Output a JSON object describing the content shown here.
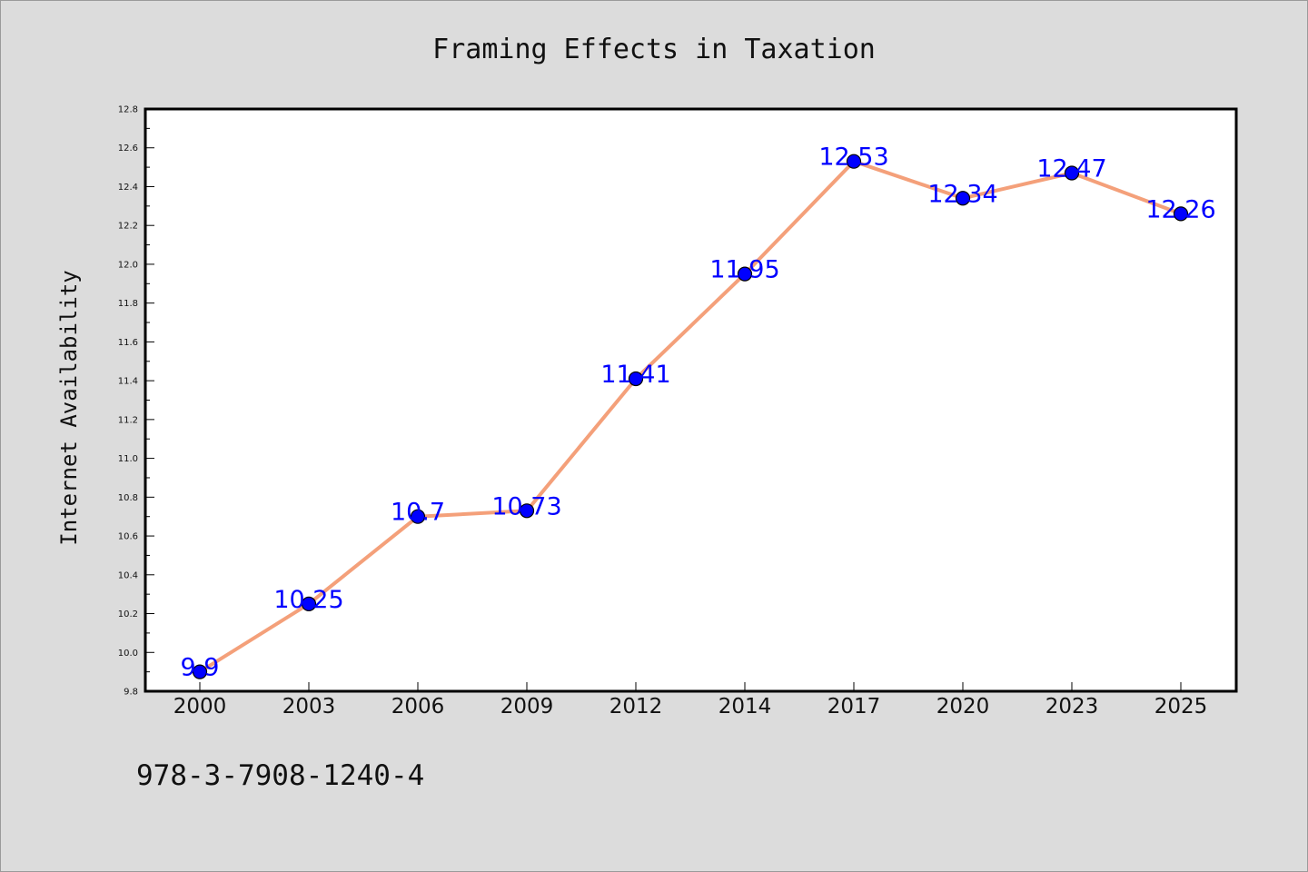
{
  "colors": {
    "page_background": "#dcdcdc",
    "plot_background": "#ffffff",
    "line": "#f4a07a",
    "marker": "#0000ff",
    "data_label": "#0000ff",
    "axis": "#000000"
  },
  "footnote": "978-3-7908-1240-4",
  "chart_data": {
    "type": "line",
    "title": "Framing Effects in Taxation",
    "xlabel": "",
    "ylabel": "Internet Availability",
    "categories": [
      "2000",
      "2003",
      "2006",
      "2009",
      "2012",
      "2014",
      "2017",
      "2020",
      "2023",
      "2025"
    ],
    "series": [
      {
        "values": [
          9.9,
          10.25,
          10.7,
          10.73,
          11.41,
          11.95,
          12.53,
          12.34,
          12.47,
          12.26
        ],
        "labels": [
          "9.9",
          "10.25",
          "10.7",
          "10.73",
          "11.41",
          "11.95",
          "12.53",
          "12.34",
          "12.47",
          "12.26"
        ]
      }
    ],
    "ylim": [
      9.8,
      12.8
    ],
    "yticks": [
      "9.8",
      "10.0",
      "10.2",
      "10.4",
      "10.6",
      "10.8",
      "11.0",
      "11.2",
      "11.4",
      "11.6",
      "11.8",
      "12.0",
      "12.2",
      "12.4",
      "12.6",
      "12.8"
    ],
    "grid": false,
    "legend": "none"
  }
}
